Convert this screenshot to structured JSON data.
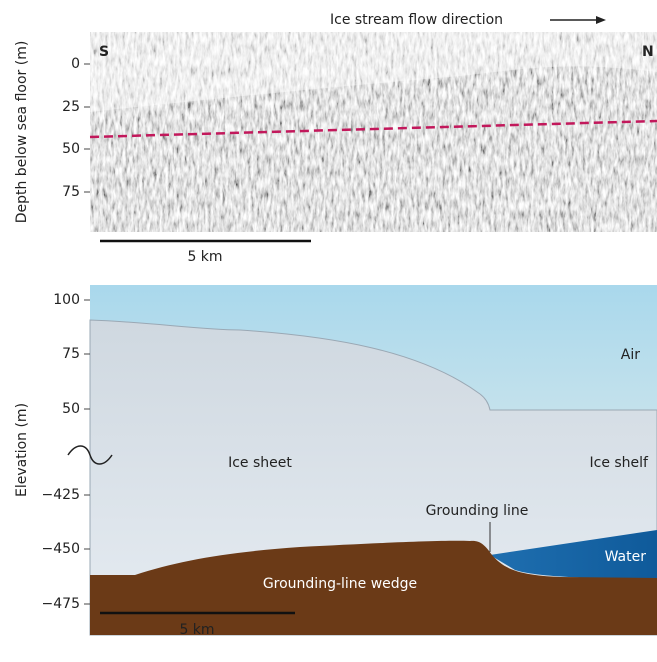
{
  "top": {
    "title": "Ice stream flow direction",
    "left_label": "S",
    "right_label": "N",
    "y_label": "Depth below sea floor (m)",
    "yticks": [
      "0",
      "25",
      "50",
      "75"
    ],
    "scale": "5 km"
  },
  "bottom": {
    "y_label": "Elevation (m)",
    "yticks": [
      "100",
      "75",
      "50",
      "−425",
      "−450",
      "−475"
    ],
    "labels": {
      "air": "Air",
      "ice_sheet": "Ice sheet",
      "ice_shelf": "Ice shelf",
      "grounding_line": "Grounding line",
      "water": "Water",
      "wedge": "Grounding-line wedge"
    },
    "scale": "5 km"
  }
}
